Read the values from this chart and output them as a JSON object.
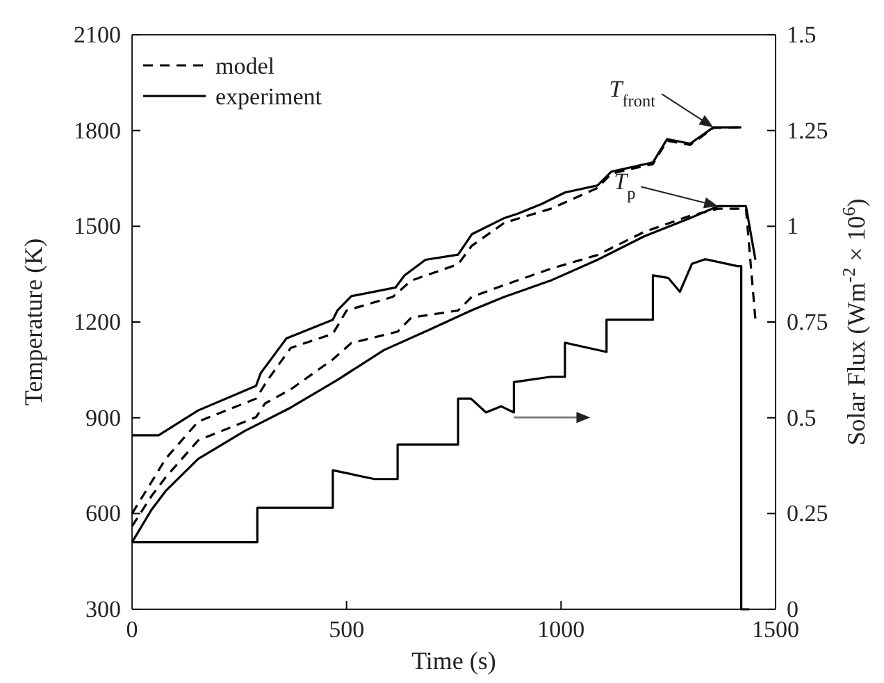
{
  "chart_data": {
    "type": "line",
    "xlabel": "Time (s)",
    "ylabel": "Temperature (K)",
    "y2label": "Solar Flux (Wm$^{-2}$ × 10$^{6}$)",
    "xlim": [
      0,
      1500
    ],
    "xticks": [
      0,
      500,
      1000,
      1500
    ],
    "ylim": [
      300,
      2100
    ],
    "yticks": [
      300,
      600,
      900,
      1200,
      1500,
      1800,
      2100
    ],
    "y2lim": [
      0,
      1.5
    ],
    "y2ticks": [
      0,
      0.25,
      0.5,
      0.75,
      1,
      1.25,
      1.5
    ],
    "legend": "top left",
    "grid": false,
    "series": [
      {
        "name": "model",
        "color": "#000000",
        "line_style": "dashed",
        "x": [
          0,
          45,
          78,
          154,
          289,
          316,
          370,
          468,
          500,
          608,
          651,
          760,
          792,
          868,
          976,
          1085,
          1117,
          1214,
          1247,
          1301,
          1355,
          1420
        ],
        "values": [
          600,
          698,
          771,
          888,
          960,
          1018,
          1119,
          1163,
          1236,
          1279,
          1330,
          1381,
          1439,
          1511,
          1555,
          1620,
          1665,
          1695,
          1768,
          1755,
          1808,
          1810
        ]
      },
      {
        "color": "#000000",
        "line_style": "dashed",
        "x": [
          0,
          45,
          78,
          154,
          289,
          310,
          370,
          468,
          511,
          619,
          651,
          760,
          792,
          868,
          976,
          1085,
          1193,
          1301,
          1366,
          1431,
          1453
        ],
        "values": [
          560,
          654,
          713,
          829,
          902,
          945,
          989,
          1083,
          1134,
          1170,
          1214,
          1236,
          1279,
          1316,
          1367,
          1410,
          1482,
          1533,
          1555,
          1555,
          1207
        ]
      },
      {
        "name": "experiment",
        "color": "#000000",
        "line_style": "solid",
        "x": [
          0,
          62,
          154,
          289,
          300,
          360,
          468,
          479,
          511,
          614,
          635,
          684,
          760,
          792,
          868,
          900,
          955,
          1009,
          1085,
          1117,
          1214,
          1247,
          1301,
          1355,
          1420
        ],
        "values": [
          845,
          845,
          923,
          1000,
          1040,
          1149,
          1207,
          1237,
          1281,
          1308,
          1346,
          1395,
          1411,
          1475,
          1526,
          1540,
          1570,
          1606,
          1628,
          1671,
          1700,
          1773,
          1759,
          1810,
          1810
        ]
      },
      {
        "color": "#000000",
        "line_style": "solid",
        "x": [
          0,
          45,
          78,
          154,
          262,
          370,
          479,
          587,
          695,
          792,
          868,
          976,
          1085,
          1193,
          1301,
          1366,
          1431,
          1453
        ],
        "values": [
          510,
          611,
          670,
          771,
          858,
          932,
          1019,
          1112,
          1177,
          1237,
          1279,
          1330,
          1395,
          1468,
          1526,
          1563,
          1563,
          1395
        ]
      },
      {
        "color": "#000000",
        "line_style": "solid",
        "axis": "y2",
        "x": [
          0,
          292,
          292,
          468,
          468,
          565,
          619,
          619,
          760,
          760,
          790,
          825,
          860,
          890,
          890,
          976,
          1009,
          1009,
          1106,
          1106,
          1214,
          1214,
          1250,
          1277,
          1305,
          1336,
          1411,
          1420,
          1420,
          1439
        ],
        "values": [
          0.175,
          0.175,
          0.265,
          0.265,
          0.363,
          0.34,
          0.34,
          0.43,
          0.43,
          0.55,
          0.55,
          0.514,
          0.53,
          0.514,
          0.593,
          0.607,
          0.607,
          0.696,
          0.672,
          0.756,
          0.756,
          0.872,
          0.865,
          0.829,
          0.902,
          0.914,
          0.896,
          0.896,
          0,
          0
        ]
      }
    ],
    "annotations": [
      {
        "text": "T$_{front}$",
        "x": 1355,
        "y": 1810
      },
      {
        "text": "T$_{p}$",
        "x": 1366,
        "y": 1563
      }
    ]
  }
}
